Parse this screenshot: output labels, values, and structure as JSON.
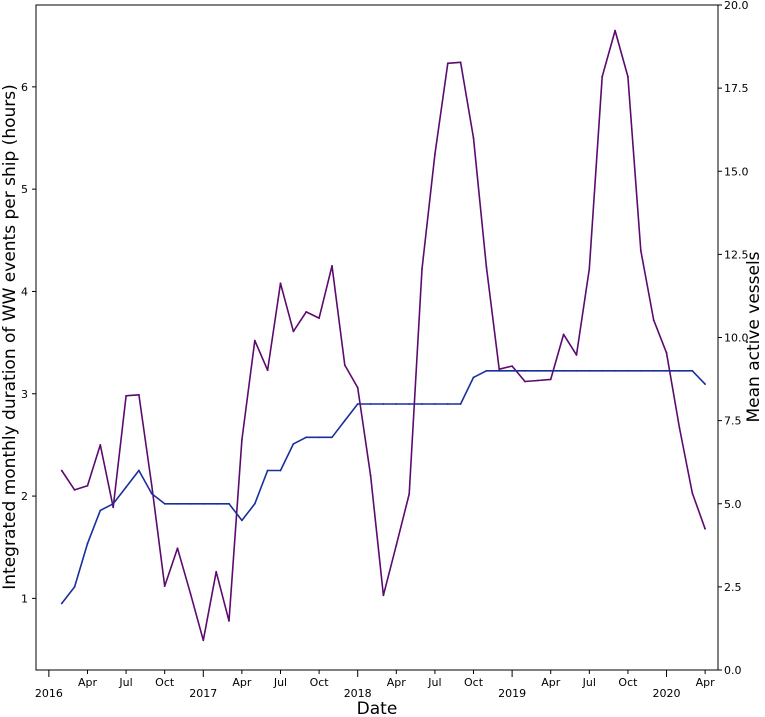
{
  "chart_data": {
    "type": "line",
    "xlabel": "Date",
    "ylabel_left": "Integrated monthly duration of WW events per ship (hours)",
    "ylabel_right": "Mean active vessels",
    "ylim_left": [
      0.3,
      6.8
    ],
    "ylim_right": [
      0.0,
      20.0
    ],
    "xlim": [
      "2015-12",
      "2020-05"
    ],
    "left_ticks": [
      "1",
      "2",
      "3",
      "4",
      "5",
      "6"
    ],
    "right_ticks": [
      "0.0",
      "2.5",
      "5.0",
      "7.5",
      "10.0",
      "12.5",
      "15.0",
      "17.5",
      "20.0"
    ],
    "x_ticks": [
      {
        "date": "2016-01",
        "label": "2016",
        "major": true
      },
      {
        "date": "2016-04",
        "label": "Apr",
        "major": false
      },
      {
        "date": "2016-07",
        "label": "Jul",
        "major": false
      },
      {
        "date": "2016-10",
        "label": "Oct",
        "major": false
      },
      {
        "date": "2017-01",
        "label": "2017",
        "major": true
      },
      {
        "date": "2017-04",
        "label": "Apr",
        "major": false
      },
      {
        "date": "2017-07",
        "label": "Jul",
        "major": false
      },
      {
        "date": "2017-10",
        "label": "Oct",
        "major": false
      },
      {
        "date": "2018-01",
        "label": "2018",
        "major": true
      },
      {
        "date": "2018-04",
        "label": "Apr",
        "major": false
      },
      {
        "date": "2018-07",
        "label": "Jul",
        "major": false
      },
      {
        "date": "2018-10",
        "label": "Oct",
        "major": false
      },
      {
        "date": "2019-01",
        "label": "2019",
        "major": true
      },
      {
        "date": "2019-04",
        "label": "Apr",
        "major": false
      },
      {
        "date": "2019-07",
        "label": "Jul",
        "major": false
      },
      {
        "date": "2019-10",
        "label": "Oct",
        "major": false
      },
      {
        "date": "2020-01",
        "label": "2020",
        "major": true
      },
      {
        "date": "2020-04",
        "label": "Apr",
        "major": false
      }
    ],
    "series": [
      {
        "axis": "left",
        "color": "#5c0a6e",
        "points": [
          [
            "2016-02",
            2.25
          ],
          [
            "2016-03",
            2.06
          ],
          [
            "2016-04",
            2.1
          ],
          [
            "2016-05",
            2.5
          ],
          [
            "2016-06",
            1.89
          ],
          [
            "2016-07",
            2.98
          ],
          [
            "2016-08",
            2.99
          ],
          [
            "2016-09",
            2.1
          ],
          [
            "2016-10",
            1.12
          ],
          [
            "2016-11",
            1.49
          ],
          [
            "2016-12",
            1.05
          ],
          [
            "2017-01",
            0.59
          ],
          [
            "2017-02",
            1.26
          ],
          [
            "2017-03",
            0.78
          ],
          [
            "2017-04",
            2.55
          ],
          [
            "2017-05",
            3.52
          ],
          [
            "2017-06",
            3.23
          ],
          [
            "2017-07",
            4.08
          ],
          [
            "2017-08",
            3.61
          ],
          [
            "2017-09",
            3.8
          ],
          [
            "2017-10",
            3.74
          ],
          [
            "2017-11",
            4.25
          ],
          [
            "2017-12",
            3.28
          ],
          [
            "2018-01",
            3.06
          ],
          [
            "2018-02",
            2.2
          ],
          [
            "2018-03",
            1.03
          ],
          [
            "2018-04",
            1.52
          ],
          [
            "2018-05",
            2.02
          ],
          [
            "2018-06",
            4.22
          ],
          [
            "2018-07",
            5.34
          ],
          [
            "2018-08",
            6.23
          ],
          [
            "2018-09",
            6.24
          ],
          [
            "2018-10",
            5.5
          ],
          [
            "2018-11",
            4.24
          ],
          [
            "2018-12",
            3.24
          ],
          [
            "2019-01",
            3.27
          ],
          [
            "2019-02",
            3.12
          ],
          [
            "2019-03",
            3.13
          ],
          [
            "2019-04",
            3.14
          ],
          [
            "2019-05",
            3.58
          ],
          [
            "2019-06",
            3.38
          ],
          [
            "2019-07",
            4.22
          ],
          [
            "2019-08",
            6.1
          ],
          [
            "2019-09",
            6.55
          ],
          [
            "2019-10",
            6.1
          ],
          [
            "2019-11",
            4.4
          ],
          [
            "2019-12",
            3.72
          ],
          [
            "2020-01",
            3.4
          ],
          [
            "2020-02",
            2.67
          ],
          [
            "2020-03",
            2.03
          ],
          [
            "2020-04",
            1.68
          ]
        ]
      },
      {
        "axis": "right",
        "color": "#1a2f9c",
        "points": [
          [
            "2016-02",
            2.0
          ],
          [
            "2016-03",
            2.5
          ],
          [
            "2016-04",
            3.8
          ],
          [
            "2016-05",
            4.8
          ],
          [
            "2016-06",
            5.0
          ],
          [
            "2016-07",
            5.5
          ],
          [
            "2016-08",
            6.0
          ],
          [
            "2016-09",
            5.3
          ],
          [
            "2016-10",
            5.0
          ],
          [
            "2016-11",
            5.0
          ],
          [
            "2016-12",
            5.0
          ],
          [
            "2017-01",
            5.0
          ],
          [
            "2017-02",
            5.0
          ],
          [
            "2017-03",
            5.0
          ],
          [
            "2017-04",
            4.5
          ],
          [
            "2017-05",
            5.0
          ],
          [
            "2017-06",
            6.0
          ],
          [
            "2017-07",
            6.0
          ],
          [
            "2017-08",
            6.8
          ],
          [
            "2017-09",
            7.0
          ],
          [
            "2017-10",
            7.0
          ],
          [
            "2017-11",
            7.0
          ],
          [
            "2017-12",
            7.5
          ],
          [
            "2018-01",
            8.0
          ],
          [
            "2018-02",
            8.0
          ],
          [
            "2018-03",
            8.0
          ],
          [
            "2018-04",
            8.0
          ],
          [
            "2018-05",
            8.0
          ],
          [
            "2018-06",
            8.0
          ],
          [
            "2018-07",
            8.0
          ],
          [
            "2018-08",
            8.0
          ],
          [
            "2018-09",
            8.0
          ],
          [
            "2018-10",
            8.8
          ],
          [
            "2018-11",
            9.0
          ],
          [
            "2018-12",
            9.0
          ],
          [
            "2019-01",
            9.0
          ],
          [
            "2019-02",
            9.0
          ],
          [
            "2019-03",
            9.0
          ],
          [
            "2019-04",
            9.0
          ],
          [
            "2019-05",
            9.0
          ],
          [
            "2019-06",
            9.0
          ],
          [
            "2019-07",
            9.0
          ],
          [
            "2019-08",
            9.0
          ],
          [
            "2019-09",
            9.0
          ],
          [
            "2019-10",
            9.0
          ],
          [
            "2019-11",
            9.0
          ],
          [
            "2019-12",
            9.0
          ],
          [
            "2020-01",
            9.0
          ],
          [
            "2020-02",
            9.0
          ],
          [
            "2020-03",
            9.0
          ],
          [
            "2020-04",
            8.6
          ]
        ]
      }
    ]
  }
}
